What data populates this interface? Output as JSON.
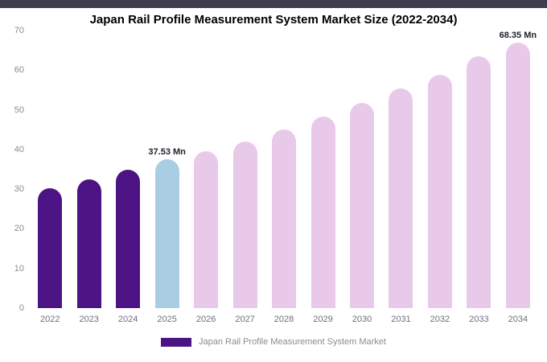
{
  "chart_data": {
    "type": "bar",
    "title": "Japan Rail Profile Measurement System Market Size (2022-2034)",
    "categories": [
      "2022",
      "2023",
      "2024",
      "2025",
      "2026",
      "2027",
      "2028",
      "2029",
      "2030",
      "2031",
      "2032",
      "2033",
      "2034"
    ],
    "values": [
      30.2,
      32.4,
      35,
      37.53,
      39.6,
      42.1,
      45.1,
      48.2,
      51.8,
      55.3,
      58.9,
      63.6,
      68.35
    ],
    "unit": "Mn",
    "ylim": [
      0,
      70
    ],
    "yticks": [
      0,
      10,
      20,
      30,
      40,
      50,
      60,
      70
    ],
    "grid": false,
    "colors": [
      "#4b1383",
      "#4b1383",
      "#4b1383",
      "#a9cde3",
      "#e8c9ea",
      "#e8c9ea",
      "#e8c9ea",
      "#e8c9ea",
      "#e8c9ea",
      "#e8c9ea",
      "#e8c9ea",
      "#e8c9ea",
      "#e8c9ea"
    ],
    "annotations": [
      {
        "category": "2025",
        "text": "37.53 Mn"
      },
      {
        "category": "2034",
        "text": "68.35 Mn"
      }
    ],
    "legend_label": "Japan Rail Profile Measurement System Market",
    "legend_color": "#4b1383",
    "legend_position": "bottom"
  },
  "colors": {
    "top_strip": "#3e3e50",
    "background": "#ffffff",
    "historic_bar": "#4b1383",
    "current_bar": "#a9cde3",
    "forecast_bar": "#e8c9ea"
  }
}
